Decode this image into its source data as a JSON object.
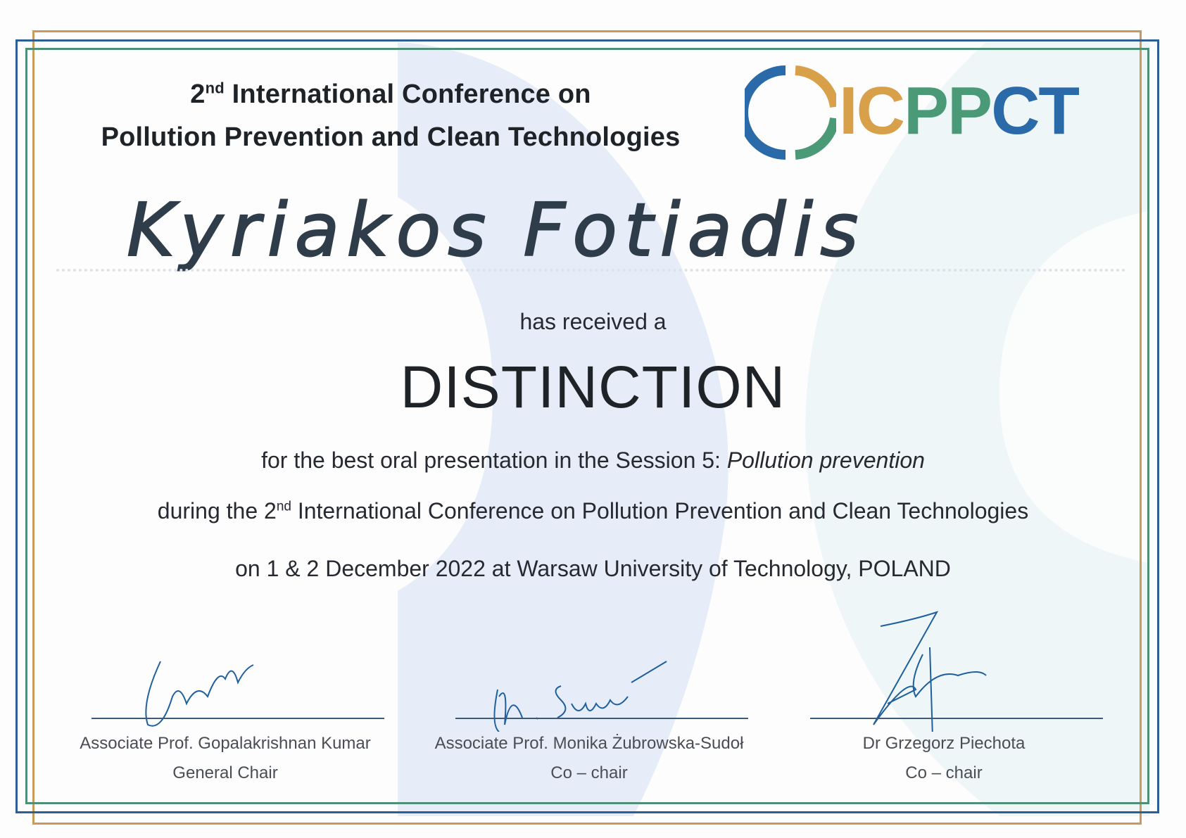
{
  "header": {
    "title_line1_ordinal": "2",
    "title_line1_suffix": "nd",
    "title_line1_rest": " International Conference on",
    "title_line2": "Pollution Prevention and Clean Technologies"
  },
  "logo": {
    "text": "ICPPCT",
    "colors": {
      "blue": "#2a6aa8",
      "orange": "#d9a04a",
      "green": "#4a9a78"
    }
  },
  "recipient": {
    "name": "Kyriakos  Fotiadis"
  },
  "body": {
    "received": "has received a",
    "award": "DISTINCTION",
    "line1_prefix": "for the best oral presentation in the Session 5: ",
    "line1_italic": "Pollution prevention",
    "line2_prefix": "during the 2",
    "line2_suffix": "nd",
    "line2_rest": " International Conference on Pollution Prevention and Clean Technologies",
    "line3": "on 1 & 2 December 2022 at Warsaw University of Technology, POLAND"
  },
  "signatories": [
    {
      "name": "Associate Prof. Gopalakrishnan Kumar",
      "role": "General Chair"
    },
    {
      "name": "Associate Prof. Monika Żubrowska-Sudoł",
      "role": "Co – chair"
    },
    {
      "name": "Dr Grzegorz Piechota",
      "role": "Co – chair"
    }
  ],
  "colors": {
    "frame_orange": "#c99a5a",
    "frame_blue": "#2d5f95",
    "frame_green": "#4f8f78",
    "ink": "#1f5f9e"
  }
}
